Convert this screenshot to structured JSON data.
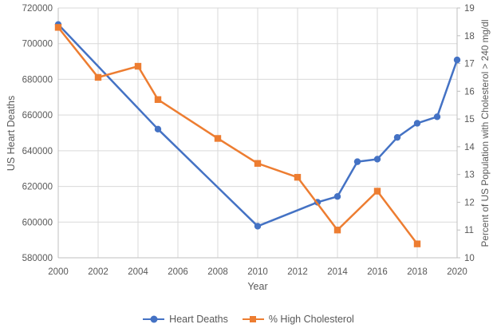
{
  "chart_data": {
    "type": "line",
    "title": "",
    "xlabel": "Year",
    "ylabel_left": "US Heart Deaths",
    "ylabel_right": "Percent of US Population with Cholesterol > 240 mg/dl",
    "x_range": [
      2000,
      2020
    ],
    "x_ticks": [
      2000,
      2002,
      2004,
      2006,
      2008,
      2010,
      2012,
      2014,
      2016,
      2018,
      2020
    ],
    "left_axis": {
      "min": 580000,
      "max": 720000,
      "step": 20000
    },
    "right_axis": {
      "min": 10,
      "max": 19,
      "step": 1
    },
    "grid": {
      "horizontal": true,
      "vertical": true
    },
    "legend_position": "bottom",
    "colors": {
      "heart_deaths": "#4472C4",
      "high_cholesterol": "#ED7D31",
      "gridline": "#D9D9D9",
      "axis_line": "#BFBFBF",
      "text": "#595959"
    },
    "series": [
      {
        "name": "Heart Deaths",
        "axis": "left",
        "color": "#4472C4",
        "marker": "circle",
        "points": [
          [
            2000,
            710760
          ],
          [
            2005,
            652091
          ],
          [
            2010,
            597689
          ],
          [
            2013,
            611105
          ],
          [
            2014,
            614348
          ],
          [
            2015,
            633842
          ],
          [
            2016,
            635260
          ],
          [
            2017,
            647457
          ],
          [
            2018,
            655381
          ],
          [
            2019,
            659041
          ],
          [
            2020,
            690882
          ]
        ]
      },
      {
        "name": "% High Cholesterol",
        "axis": "right",
        "color": "#ED7D31",
        "marker": "square",
        "points": [
          [
            2000,
            18.3
          ],
          [
            2002,
            16.5
          ],
          [
            2004,
            16.9
          ],
          [
            2005,
            15.7
          ],
          [
            2008,
            14.3
          ],
          [
            2010,
            13.4
          ],
          [
            2012,
            12.9
          ],
          [
            2014,
            11.0
          ],
          [
            2016,
            12.4
          ],
          [
            2018,
            10.5
          ]
        ]
      }
    ]
  }
}
